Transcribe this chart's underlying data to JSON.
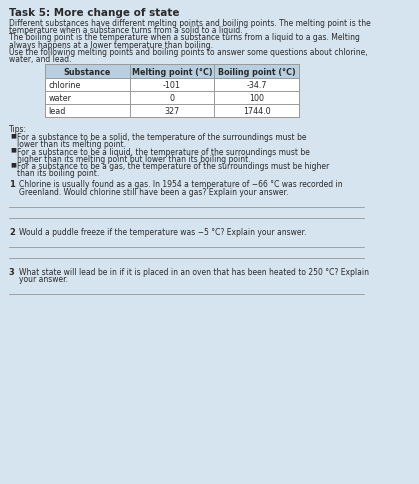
{
  "title": "Task 5: More change of state",
  "intro_text": [
    "Different substances have different melting points and boiling points. The melting point is the",
    "temperature when a substance turns from a solid to a liquid.",
    "The boiling point is the temperature when a substance turns from a liquid to a gas. Melting",
    "always happens at a lower temperature than boiling.",
    "Use the following melting points and boiling points to answer some questions about chlorine,",
    "water, and lead."
  ],
  "table_headers": [
    "Substance",
    "Melting point (°C)",
    "Boiling point (°C)"
  ],
  "table_rows": [
    [
      "chlorine",
      "-101",
      "-34.7"
    ],
    [
      "water",
      "0",
      "100"
    ],
    [
      "lead",
      "327",
      "1744.0"
    ]
  ],
  "tips_header": "Tips:",
  "tips": [
    [
      "For a substance to be a solid, the temperature of the surroundings must be",
      "lower than its melting point."
    ],
    [
      "For a substance to be a liquid, the temperature of the surroundings must be",
      "higher than its melting point but lower than its boiling point."
    ],
    [
      "For a substance to be a gas, the temperature of the surroundings must be higher",
      "than its boiling point."
    ]
  ],
  "questions": [
    {
      "number": "1",
      "text": [
        "Chlorine is usually found as a gas. In 1954 a temperature of −66 °C was recorded in",
        "Greenland. Would chlorine still have been a gas? Explain your answer."
      ],
      "answer_lines": 2
    },
    {
      "number": "2",
      "text": [
        "Would a puddle freeze if the temperature was −5 °C? Explain your answer."
      ],
      "answer_lines": 2
    },
    {
      "number": "3",
      "text": [
        "What state will lead be in if it is placed in an oven that has been heated to 250 °C? Explain",
        "your answer."
      ],
      "answer_lines": 1
    }
  ],
  "bg_color": "#d6e4f0",
  "table_bg": "#ffffff",
  "table_header_bg": "#b8cfe0",
  "text_color": "#2a2a2a",
  "line_color": "#888888",
  "title_fontsize": 7.5,
  "body_fontsize": 5.5,
  "table_fontsize": 5.8
}
